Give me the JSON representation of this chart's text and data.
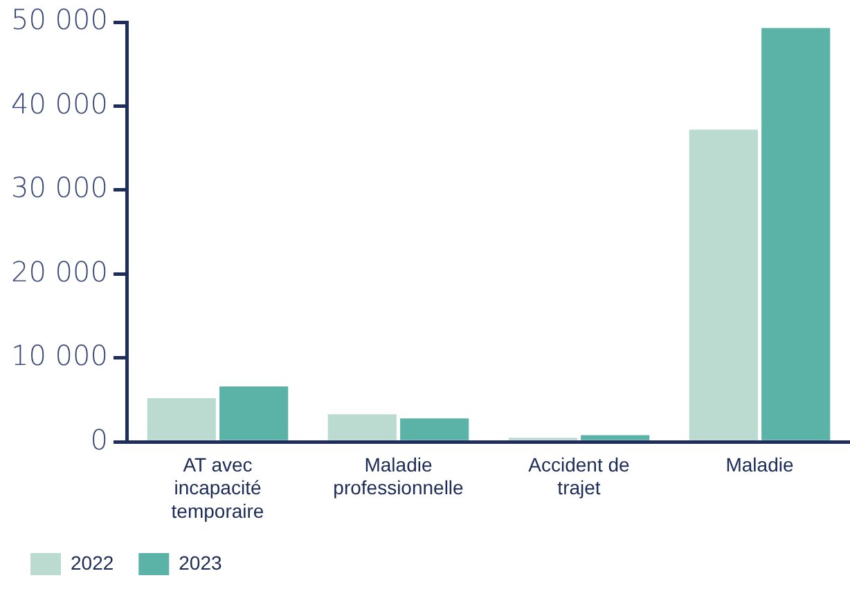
{
  "chart_data": {
    "type": "bar",
    "categories": [
      "AT avec incapacité temporaire",
      "Maladie professionnelle",
      "Accident de trajet",
      "Maladie"
    ],
    "series": [
      {
        "name": "2022",
        "color": "#bbdbd0",
        "values": [
          5200,
          3300,
          500,
          37200
        ]
      },
      {
        "name": "2023",
        "color": "#5ab3a6",
        "values": [
          6600,
          2800,
          800,
          49300
        ]
      }
    ],
    "ylim": [
      0,
      50000
    ],
    "yticks": [
      0,
      10000,
      20000,
      30000,
      40000,
      50000
    ],
    "grid": false,
    "legend": "bottom left"
  }
}
